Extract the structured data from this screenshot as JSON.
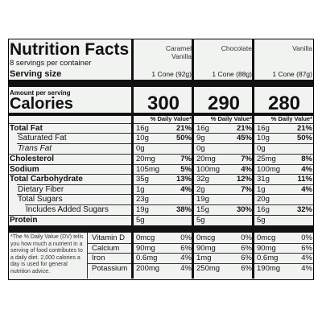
{
  "header": {
    "title": "Nutrition Facts",
    "servings": "8 servings per container",
    "serving_size_label": "Serving size",
    "amount_label": "Amount per serving",
    "calories_label": "Calories"
  },
  "columns": [
    {
      "name_lines": [
        "Caramel",
        "Vanilla"
      ],
      "serving": "1 Cone (92g)",
      "calories": 300,
      "dv_header": "% Daily Value*"
    },
    {
      "name_lines": [
        "Chocolate"
      ],
      "serving": "1 Cone (88g)",
      "calories": 290,
      "dv_header": "% Daily Value*"
    },
    {
      "name_lines": [
        "Vanilla"
      ],
      "serving": "1 Cone (87g)",
      "calories": 280,
      "dv_header": "% Daily Value*"
    }
  ],
  "nutrients": [
    {
      "label": "Total Fat",
      "values": [
        {
          "amount": "16g",
          "dv": "21%"
        },
        {
          "amount": "16g",
          "dv": "21%"
        },
        {
          "amount": "16g",
          "dv": "21%"
        }
      ]
    },
    {
      "label": "Saturated Fat",
      "values": [
        {
          "amount": "10g",
          "dv": "50%"
        },
        {
          "amount": "9g",
          "dv": "45%"
        },
        {
          "amount": "10g",
          "dv": "50%"
        }
      ]
    },
    {
      "label": "Trans Fat",
      "values": [
        {
          "amount": "0g"
        },
        {
          "amount": "0g"
        },
        {
          "amount": "0g"
        }
      ]
    },
    {
      "label": "Cholesterol",
      "values": [
        {
          "amount": "20mg",
          "dv": "7%"
        },
        {
          "amount": "20mg",
          "dv": "7%"
        },
        {
          "amount": "25mg",
          "dv": "8%"
        }
      ]
    },
    {
      "label": "Sodium",
      "values": [
        {
          "amount": "105mg",
          "dv": "5%"
        },
        {
          "amount": "100mg",
          "dv": "4%"
        },
        {
          "amount": "100mg",
          "dv": "4%"
        }
      ]
    },
    {
      "label": "Total Carbohydrate",
      "values": [
        {
          "amount": "35g",
          "dv": "13%"
        },
        {
          "amount": "32g",
          "dv": "12%"
        },
        {
          "amount": "31g",
          "dv": "11%"
        }
      ]
    },
    {
      "label": "Dietary Fiber",
      "values": [
        {
          "amount": "1g",
          "dv": "4%"
        },
        {
          "amount": "2g",
          "dv": "7%"
        },
        {
          "amount": "1g",
          "dv": "4%"
        }
      ]
    },
    {
      "label": "Total Sugars",
      "values": [
        {
          "amount": "23g"
        },
        {
          "amount": "19g"
        },
        {
          "amount": "20g"
        }
      ]
    },
    {
      "label": "Includes Added Sugars",
      "values": [
        {
          "amount": "19g",
          "dv": "38%"
        },
        {
          "amount": "15g",
          "dv": "30%"
        },
        {
          "amount": "16g",
          "dv": "32%"
        }
      ]
    },
    {
      "label": "Protein",
      "values": [
        {
          "amount": "5g"
        },
        {
          "amount": "5g"
        },
        {
          "amount": "5g"
        }
      ]
    }
  ],
  "footnote": "*The % Daily Value (DV) tells you how much a nutrient in a serving of food contributes to a daily diet. 2,000 calories a day is used for general nutrition advice.",
  "vitamins": [
    {
      "label": "Vitamin D",
      "values": [
        {
          "amount": "0mcg",
          "dv": "0%"
        },
        {
          "amount": "0mcg",
          "dv": "0%"
        },
        {
          "amount": "0mcg",
          "dv": "0%"
        }
      ]
    },
    {
      "label": "Calcium",
      "values": [
        {
          "amount": "90mg",
          "dv": "6%"
        },
        {
          "amount": "90mg",
          "dv": "6%"
        },
        {
          "amount": "90mg",
          "dv": "6%"
        }
      ]
    },
    {
      "label": "Iron",
      "values": [
        {
          "amount": "0.6mg",
          "dv": "4%"
        },
        {
          "amount": "1mg",
          "dv": "6%"
        },
        {
          "amount": "0.6mg",
          "dv": "4%"
        }
      ]
    },
    {
      "label": "Potassium",
      "values": [
        {
          "amount": "200mg",
          "dv": "4%"
        },
        {
          "amount": "250mg",
          "dv": "6%"
        },
        {
          "amount": "190mg",
          "dv": "4%"
        }
      ]
    }
  ]
}
